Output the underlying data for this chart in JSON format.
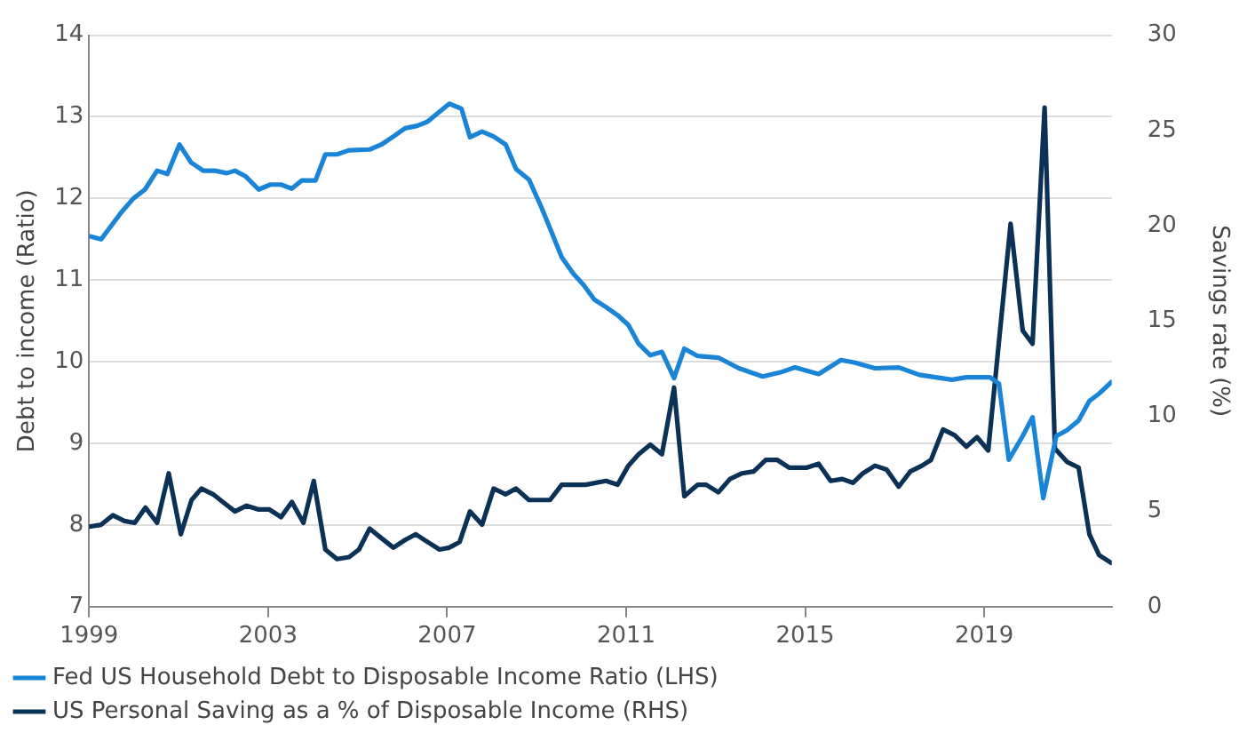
{
  "chart_data": {
    "type": "line",
    "ylabel": "Debt to income (Ratio)",
    "y2label": "Savings rate (%)",
    "xlim": [
      1999,
      2021.85
    ],
    "xticks": [
      1999,
      2003,
      2007,
      2011,
      2015,
      2019
    ],
    "ylim": [
      7,
      14
    ],
    "yticks": [
      7,
      8,
      9,
      10,
      11,
      12,
      13,
      14
    ],
    "y2lim": [
      0,
      30
    ],
    "y2ticks": [
      0,
      5,
      10,
      15,
      20,
      25,
      30
    ],
    "grid": "y",
    "legend": "bottom",
    "marker": "none",
    "line_style": "solid",
    "series": [
      {
        "name": "Fed US Household Debt to Disposable Income Ratio (LHS)",
        "color": "#1a85d6",
        "x": [
          1999,
          1999.27,
          1999.72,
          1999.99,
          2000.25,
          2000.52,
          2000.75,
          2001.02,
          2001.28,
          2001.55,
          2001.81,
          2002.08,
          2002.26,
          2002.5,
          2002.79,
          2003.05,
          2003.29,
          2003.53,
          2003.75,
          2004.06,
          2004.28,
          2004.54,
          2004.81,
          2005.27,
          2005.53,
          2005.8,
          2006.06,
          2006.33,
          2006.56,
          2006.8,
          2007.05,
          2007.32,
          2007.51,
          2007.78,
          2008.04,
          2008.31,
          2008.54,
          2008.83,
          2009.1,
          2009.34,
          2009.56,
          2009.82,
          2010.05,
          2010.29,
          2010.55,
          2010.81,
          2011.05,
          2011.28,
          2011.54,
          2011.8,
          2012.07,
          2012.3,
          2012.6,
          2013.06,
          2013.52,
          2014.05,
          2014.45,
          2014.77,
          2015.3,
          2015.8,
          2016.1,
          2016.56,
          2017.09,
          2017.55,
          2018.28,
          2018.6,
          2019.13,
          2019.33,
          2019.55,
          2019.86,
          2020.08,
          2020.32,
          2020.61,
          2020.85,
          2021.11,
          2021.35,
          2021.57,
          2021.84
        ],
        "values": [
          11.54,
          11.5,
          11.83,
          12.0,
          12.11,
          12.34,
          12.3,
          12.66,
          12.44,
          12.34,
          12.34,
          12.31,
          12.34,
          12.27,
          12.11,
          12.17,
          12.17,
          12.12,
          12.22,
          12.22,
          12.54,
          12.54,
          12.59,
          12.6,
          12.66,
          12.76,
          12.86,
          12.89,
          12.94,
          13.05,
          13.16,
          13.1,
          12.75,
          12.82,
          12.76,
          12.66,
          12.36,
          12.23,
          11.9,
          11.58,
          11.28,
          11.08,
          10.94,
          10.76,
          10.67,
          10.57,
          10.45,
          10.22,
          10.08,
          10.12,
          9.8,
          10.16,
          10.07,
          10.05,
          9.92,
          9.82,
          9.87,
          9.93,
          9.85,
          10.02,
          9.99,
          9.92,
          9.93,
          9.84,
          9.78,
          9.81,
          9.81,
          9.73,
          8.8,
          9.09,
          9.32,
          8.33,
          9.09,
          9.16,
          9.28,
          9.52,
          9.61,
          9.75
        ]
      },
      {
        "name": "US Personal Saving as a % of Disposable Income (RHS)",
        "color": "#0b3256",
        "axis": "y2",
        "x": [
          1999,
          1999.27,
          1999.53,
          1999.79,
          2000.02,
          2000.26,
          2000.52,
          2000.78,
          2001.05,
          2001.29,
          2001.51,
          2001.77,
          2002.04,
          2002.26,
          2002.52,
          2002.79,
          2003.03,
          2003.29,
          2003.53,
          2003.79,
          2004.02,
          2004.28,
          2004.54,
          2004.81,
          2005.03,
          2005.27,
          2005.53,
          2005.8,
          2006.06,
          2006.3,
          2006.56,
          2006.83,
          2007.05,
          2007.28,
          2007.51,
          2007.78,
          2008.04,
          2008.31,
          2008.54,
          2008.83,
          2009.3,
          2009.56,
          2010.09,
          2010.55,
          2010.81,
          2011.05,
          2011.28,
          2011.54,
          2011.8,
          2012.07,
          2012.3,
          2012.6,
          2012.79,
          2013.06,
          2013.32,
          2013.59,
          2013.85,
          2014.12,
          2014.38,
          2014.64,
          2015.04,
          2015.3,
          2015.57,
          2015.83,
          2016.07,
          2016.29,
          2016.56,
          2016.82,
          2017.09,
          2017.35,
          2017.61,
          2017.81,
          2018.08,
          2018.34,
          2018.6,
          2018.84,
          2019.09,
          2019.59,
          2019.86,
          2020.08,
          2020.35,
          2020.58,
          2020.85,
          2021.11,
          2021.35,
          2021.57,
          2021.84
        ],
        "values": [
          4.2,
          4.3,
          4.8,
          4.5,
          4.4,
          5.2,
          4.4,
          7.0,
          3.8,
          5.6,
          6.2,
          5.9,
          5.4,
          5.0,
          5.3,
          5.1,
          5.1,
          4.7,
          5.5,
          4.4,
          6.6,
          3.0,
          2.5,
          2.6,
          3.0,
          4.1,
          3.6,
          3.1,
          3.5,
          3.8,
          3.4,
          3.0,
          3.1,
          3.4,
          5.0,
          4.3,
          6.2,
          5.9,
          6.2,
          5.6,
          5.6,
          6.4,
          6.4,
          6.6,
          6.4,
          7.4,
          8.0,
          8.5,
          8.0,
          11.5,
          5.8,
          6.4,
          6.4,
          6.0,
          6.7,
          7.0,
          7.1,
          7.7,
          7.7,
          7.3,
          7.3,
          7.5,
          6.6,
          6.7,
          6.5,
          7.0,
          7.4,
          7.2,
          6.3,
          7.1,
          7.4,
          7.7,
          9.3,
          9.0,
          8.4,
          8.9,
          8.2,
          20.1,
          14.5,
          13.8,
          26.2,
          8.3,
          7.6,
          7.3,
          3.8,
          2.7,
          2.3
        ]
      }
    ]
  }
}
